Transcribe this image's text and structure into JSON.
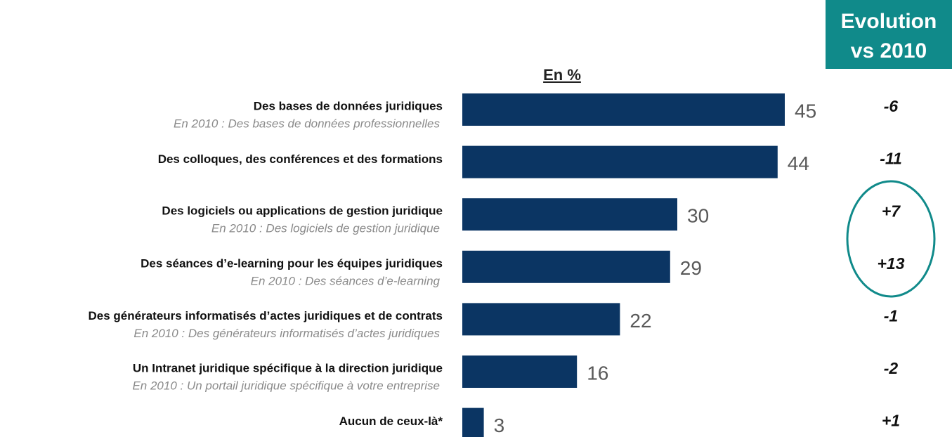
{
  "chart_data": {
    "type": "bar",
    "orientation": "horizontal",
    "axis_label": "En %",
    "categories": [
      "Des bases de données juridiques",
      "Des colloques, des conférences et des formations",
      "Des logiciels ou applications de gestion juridique",
      "Des séances d’e-learning pour les équipes juridiques",
      "Des générateurs informatisés d’actes juridiques et de contrats",
      "Un Intranet juridique spécifique à la direction juridique",
      "Aucun de ceux-là*"
    ],
    "sublabels": [
      "En 2010 : Des bases de données professionnelles",
      null,
      "En 2010 : Des logiciels de gestion juridique",
      "En 2010 : Des séances d’e-learning",
      "En 2010 : Des générateurs informatisés d’actes juridiques",
      "En 2010 : Un portail juridique spécifique à votre entreprise",
      null
    ],
    "values": [
      45,
      44,
      30,
      29,
      22,
      16,
      3
    ],
    "color": "#0b3563",
    "evolution_title": [
      "Evolution",
      "vs 2010"
    ],
    "evolution_labels": [
      "-6",
      "-11",
      "+7",
      "+13",
      "-1",
      "-2",
      "+1"
    ],
    "highlight_color": "#108a8a"
  }
}
